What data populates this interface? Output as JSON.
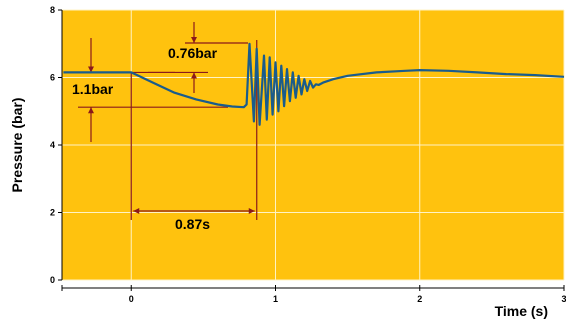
{
  "chart_data": {
    "type": "line",
    "xlabel": "Time (s)",
    "ylabel": "Pressure (bar)",
    "xlim": [
      -0.48,
      3.0
    ],
    "ylim": [
      0,
      8
    ],
    "x_ticks": [
      0,
      1,
      2,
      3
    ],
    "y_ticks": [
      0,
      2,
      4,
      6,
      8
    ],
    "grid": true,
    "colors": {
      "plot_bg": "#FFC20E",
      "grid": "#FFF3C4",
      "line": "#1A5C8C",
      "annotation": "#8B1A1A"
    },
    "series": [
      {
        "x": [
          -0.47,
          0.0,
          0.05,
          0.15,
          0.3,
          0.45,
          0.6,
          0.7,
          0.78,
          0.8,
          0.82,
          0.85,
          0.87,
          0.89,
          0.92,
          0.94,
          0.96,
          0.98,
          1.0,
          1.02,
          1.04,
          1.06,
          1.08,
          1.1,
          1.12,
          1.14,
          1.16,
          1.18,
          1.2,
          1.22,
          1.24,
          1.26,
          1.28,
          1.3,
          1.33,
          1.4,
          1.5,
          1.7,
          1.9,
          2.0,
          2.2,
          2.4,
          2.6,
          2.8,
          3.0
        ],
        "y": [
          6.15,
          6.15,
          6.05,
          5.85,
          5.55,
          5.35,
          5.2,
          5.14,
          5.12,
          5.2,
          7.0,
          4.7,
          6.85,
          4.6,
          6.65,
          4.75,
          6.6,
          4.9,
          6.45,
          5.0,
          6.35,
          5.15,
          6.25,
          5.3,
          6.15,
          5.4,
          6.05,
          5.5,
          5.95,
          5.6,
          5.9,
          5.7,
          5.8,
          5.78,
          5.85,
          5.95,
          6.05,
          6.15,
          6.2,
          6.22,
          6.2,
          6.15,
          6.1,
          6.07,
          6.02
        ]
      }
    ],
    "annotations": [
      {
        "label": "0.76bar"
      },
      {
        "label": "1.1bar"
      },
      {
        "label": "0.87s"
      }
    ]
  }
}
